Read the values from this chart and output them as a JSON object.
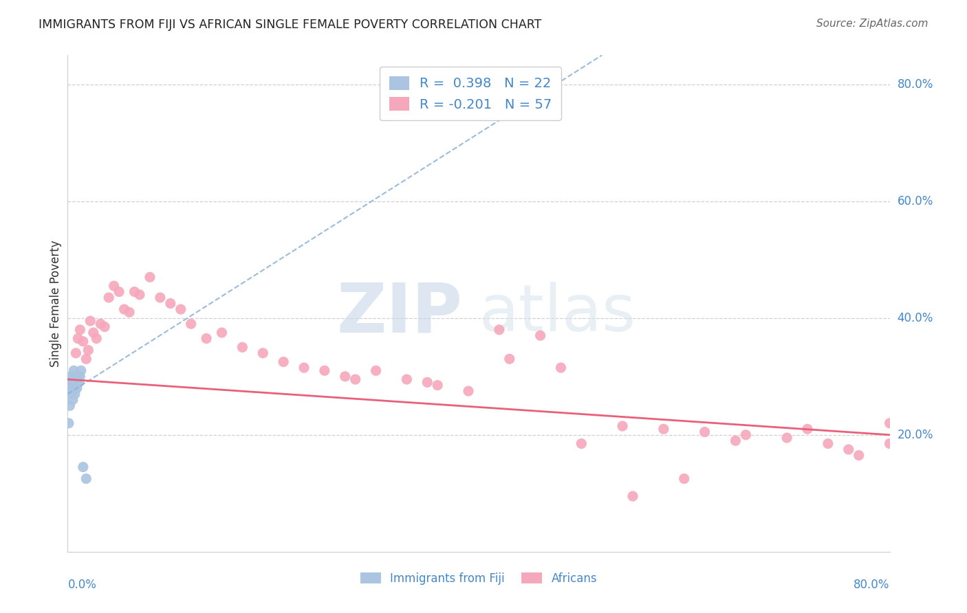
{
  "title": "IMMIGRANTS FROM FIJI VS AFRICAN SINGLE FEMALE POVERTY CORRELATION CHART",
  "source": "Source: ZipAtlas.com",
  "ylabel": "Single Female Poverty",
  "watermark_zip": "ZIP",
  "watermark_atlas": "atlas",
  "xlim": [
    0.0,
    0.8
  ],
  "ylim": [
    0.0,
    0.85
  ],
  "yticks": [
    0.2,
    0.4,
    0.6,
    0.8
  ],
  "ytick_labels": [
    "20.0%",
    "40.0%",
    "60.0%",
    "80.0%"
  ],
  "xtick_labels": [
    "0.0%",
    "80.0%"
  ],
  "fiji_R": 0.398,
  "fiji_N": 22,
  "african_R": -0.201,
  "african_N": 57,
  "fiji_color": "#aac4e2",
  "african_color": "#f5a8bb",
  "fiji_line_color": "#8ab0d8",
  "african_line_color": "#e8607a",
  "grid_color": "#d0d0d0",
  "title_color": "#222222",
  "axis_label_color": "#4488cc",
  "fiji_x": [
    0.001,
    0.002,
    0.003,
    0.003,
    0.004,
    0.004,
    0.005,
    0.005,
    0.006,
    0.006,
    0.007,
    0.007,
    0.008,
    0.008,
    0.009,
    0.009,
    0.01,
    0.011,
    0.012,
    0.013,
    0.015,
    0.018
  ],
  "fiji_y": [
    0.22,
    0.25,
    0.28,
    0.3,
    0.27,
    0.29,
    0.26,
    0.28,
    0.29,
    0.31,
    0.27,
    0.3,
    0.28,
    0.29,
    0.3,
    0.28,
    0.3,
    0.29,
    0.3,
    0.31,
    0.145,
    0.125
  ],
  "african_x": [
    0.005,
    0.008,
    0.01,
    0.012,
    0.015,
    0.018,
    0.02,
    0.022,
    0.025,
    0.028,
    0.032,
    0.036,
    0.04,
    0.045,
    0.05,
    0.055,
    0.06,
    0.065,
    0.07,
    0.08,
    0.09,
    0.1,
    0.11,
    0.12,
    0.135,
    0.15,
    0.17,
    0.19,
    0.21,
    0.23,
    0.25,
    0.27,
    0.3,
    0.33,
    0.36,
    0.39,
    0.42,
    0.46,
    0.5,
    0.54,
    0.58,
    0.62,
    0.66,
    0.7,
    0.74,
    0.77,
    0.8,
    0.8,
    0.35,
    0.28,
    0.43,
    0.48,
    0.55,
    0.6,
    0.65,
    0.72,
    0.76
  ],
  "african_y": [
    0.29,
    0.34,
    0.365,
    0.38,
    0.36,
    0.33,
    0.345,
    0.395,
    0.375,
    0.365,
    0.39,
    0.385,
    0.435,
    0.455,
    0.445,
    0.415,
    0.41,
    0.445,
    0.44,
    0.47,
    0.435,
    0.425,
    0.415,
    0.39,
    0.365,
    0.375,
    0.35,
    0.34,
    0.325,
    0.315,
    0.31,
    0.3,
    0.31,
    0.295,
    0.285,
    0.275,
    0.38,
    0.37,
    0.185,
    0.215,
    0.21,
    0.205,
    0.2,
    0.195,
    0.185,
    0.165,
    0.22,
    0.185,
    0.29,
    0.295,
    0.33,
    0.315,
    0.095,
    0.125,
    0.19,
    0.21,
    0.175
  ],
  "fiji_trend_x": [
    0.0,
    0.52
  ],
  "fiji_trend_y": [
    0.27,
    0.85
  ],
  "african_trend_x": [
    0.0,
    0.8
  ],
  "african_trend_y": [
    0.295,
    0.2
  ]
}
